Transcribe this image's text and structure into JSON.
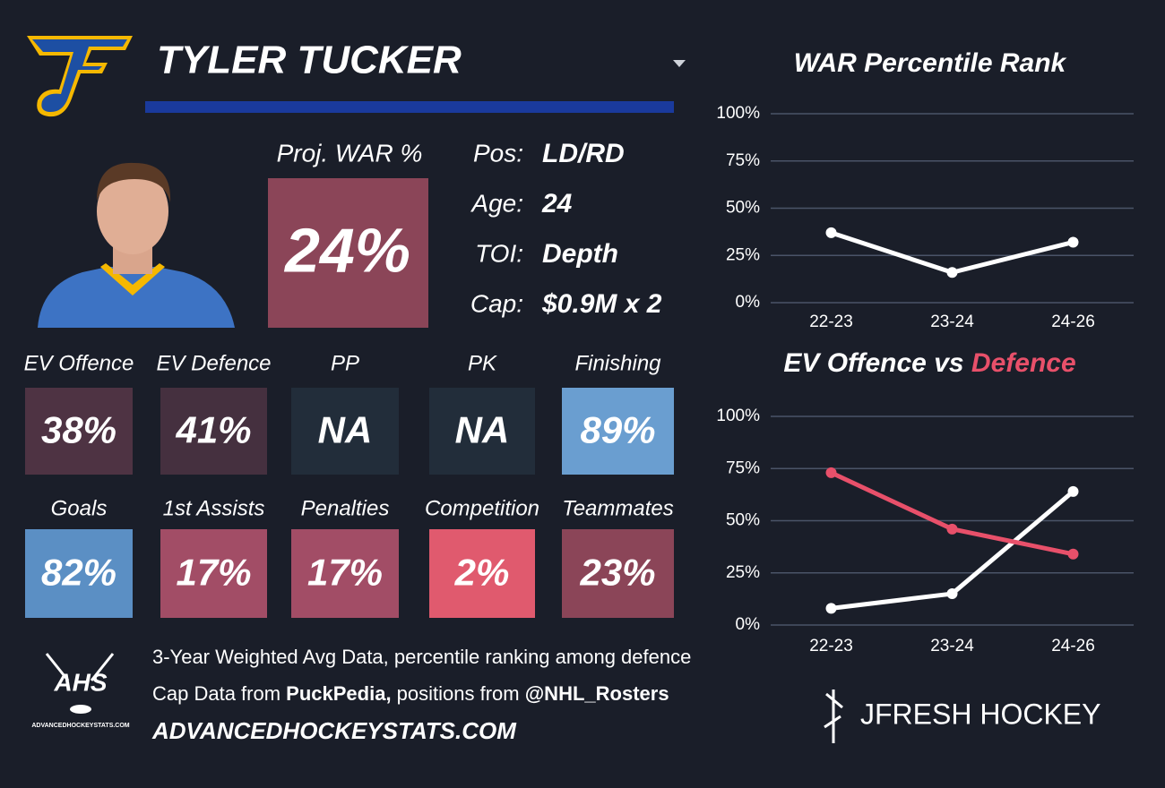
{
  "card": {
    "name": "TYLER TUCKER",
    "proj_label": "Proj. WAR %",
    "proj_value": "24%",
    "proj_color": "#8b4558",
    "info": [
      {
        "label": "Pos:",
        "value": "LD/RD"
      },
      {
        "label": "Age:",
        "value": "24"
      },
      {
        "label": "TOI:",
        "value": "Depth"
      },
      {
        "label": "Cap:",
        "value": "$0.9M x 2"
      }
    ],
    "tiles": [
      {
        "label": "EV Offence",
        "value": "38%",
        "color": "#4e3343"
      },
      {
        "label": "EV Defence",
        "value": "41%",
        "color": "#45303f"
      },
      {
        "label": "PP",
        "value": "NA",
        "color": "#222d3a"
      },
      {
        "label": "PK",
        "value": "NA",
        "color": "#222d3a"
      },
      {
        "label": "Finishing",
        "value": "89%",
        "color": "#6a9ed0"
      },
      {
        "label": "Goals",
        "value": "82%",
        "color": "#5b8fc4"
      },
      {
        "label": "1st Assists",
        "value": "17%",
        "color": "#a24d66"
      },
      {
        "label": "Penalties",
        "value": "17%",
        "color": "#a24d66"
      },
      {
        "label": "Competition",
        "value": "2%",
        "color": "#e05a6e"
      },
      {
        "label": "Teammates",
        "value": "23%",
        "color": "#8b4558"
      }
    ],
    "footer": {
      "line1": "3-Year Weighted Avg Data, percentile ranking among defence",
      "line2_parts": [
        "Cap Data from ",
        "PuckPedia,",
        " positions from ",
        "@NHL_Rosters"
      ],
      "line3": "ADVANCEDHOCKEYSTATS.COM",
      "ahs_logo": "AHS",
      "ahs_logo_sub": "ADVANCEDHOCKEYSTATS.COM",
      "brand": "JFRESH HOCKEY"
    }
  },
  "chart_data": [
    {
      "type": "line",
      "title": "WAR Percentile Rank",
      "categories": [
        "22-23",
        "23-24",
        "24-26"
      ],
      "values": [
        37,
        16,
        32
      ],
      "color": "#ffffff",
      "ylim": [
        0,
        100
      ],
      "yticks": [
        {
          "value": 0,
          "label": "0%"
        },
        {
          "value": 25,
          "label": "25%"
        },
        {
          "value": 50,
          "label": "50%"
        },
        {
          "value": 75,
          "label": "75%"
        },
        {
          "value": 100,
          "label": "100%"
        }
      ],
      "grid": true
    },
    {
      "type": "line",
      "title": "EV Offence vs",
      "title_highlight": "Defence",
      "title_highlight_color": "#e8506a",
      "categories": [
        "22-23",
        "23-24",
        "24-26"
      ],
      "series": [
        {
          "color": "#ffffff",
          "values": [
            8,
            15,
            64
          ]
        },
        {
          "color": "#e8506a",
          "values": [
            73,
            46,
            34
          ]
        }
      ],
      "ylim": [
        0,
        100
      ],
      "yticks": [
        {
          "value": 0,
          "label": "0%"
        },
        {
          "value": 25,
          "label": "25%"
        },
        {
          "value": 50,
          "label": "50%"
        },
        {
          "value": 75,
          "label": "75%"
        },
        {
          "value": 100,
          "label": "100%"
        }
      ],
      "grid": true
    }
  ]
}
